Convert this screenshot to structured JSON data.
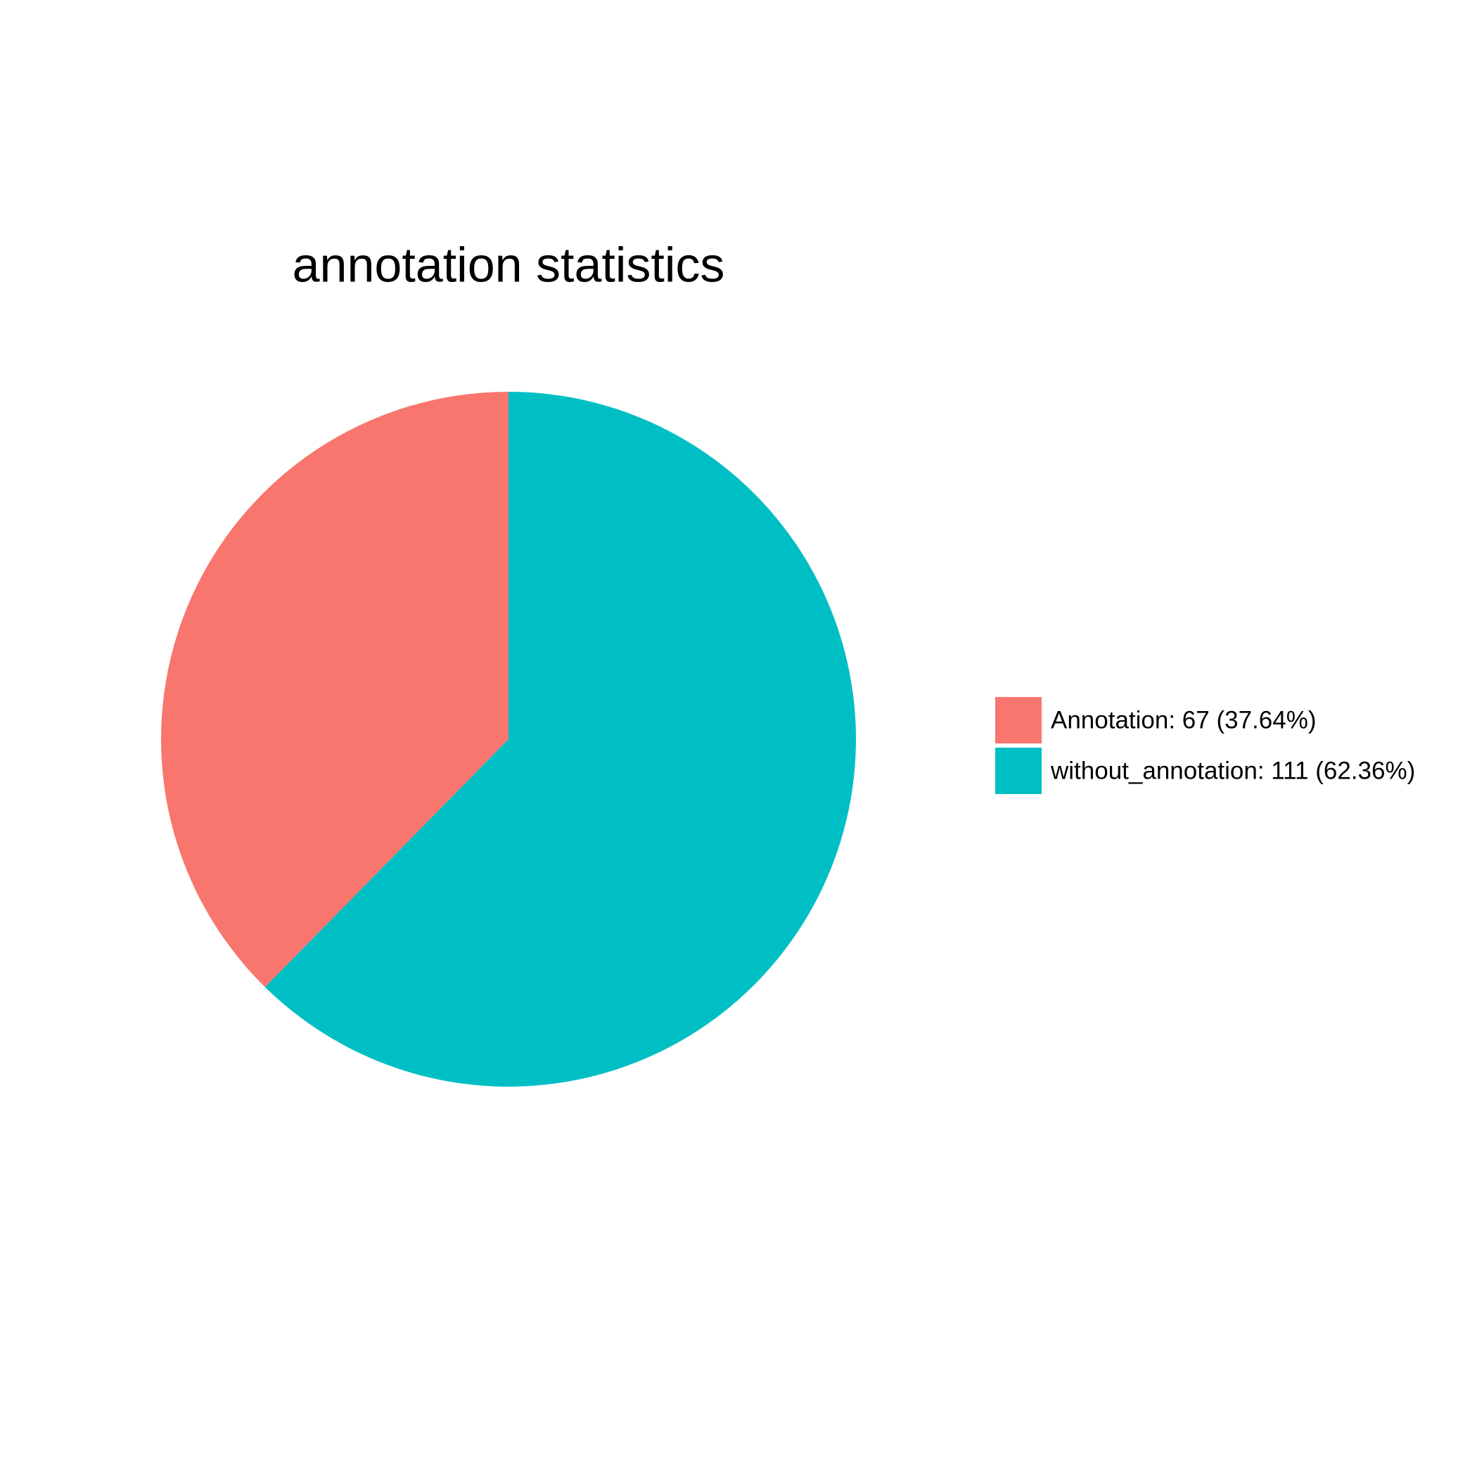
{
  "chart_data": {
    "type": "pie",
    "title": "annotation statistics",
    "categories": [
      "Annotation: 67 (37.64%)",
      "without_annotation: 111 (62.36%)"
    ],
    "values": [
      67,
      111
    ],
    "colors": [
      "#f8766d",
      "#00bfc4"
    ],
    "direction": "counterclockwise",
    "legend": "right"
  }
}
